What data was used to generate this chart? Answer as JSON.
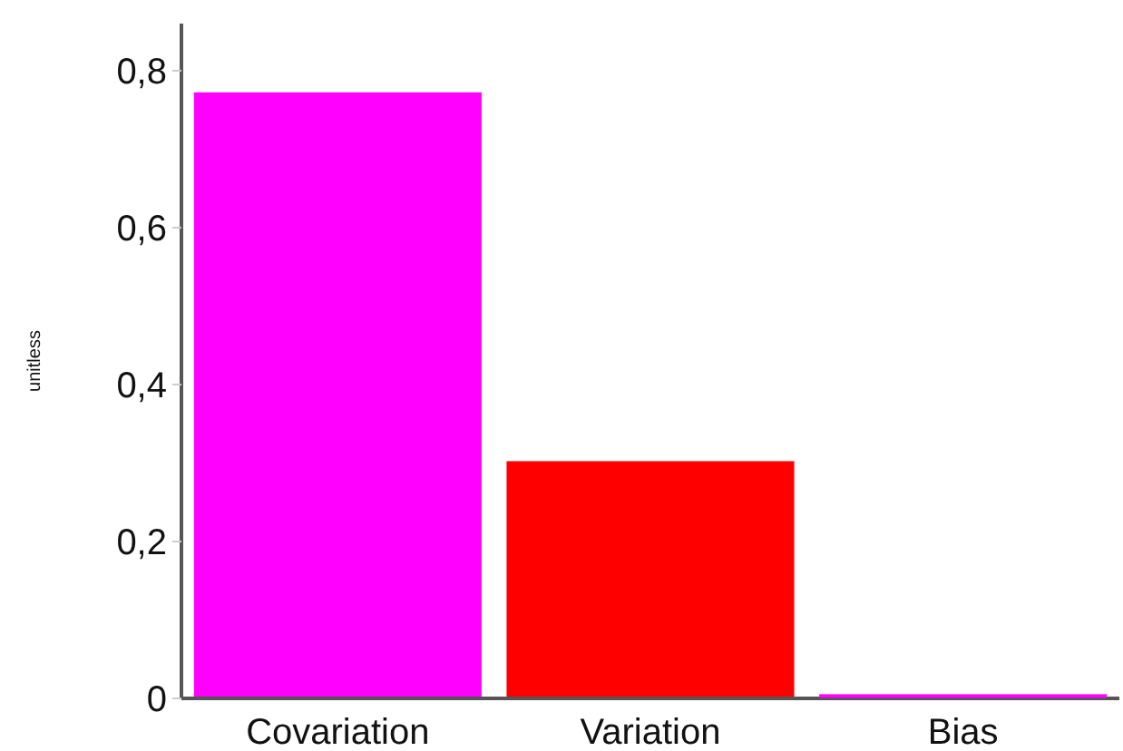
{
  "chart_data": {
    "type": "bar",
    "ylabel": "unitless",
    "categories": [
      "Covariation",
      "Variation",
      "Bias"
    ],
    "values": [
      0.77,
      0.3,
      0.003
    ],
    "colors": [
      "#ff00ff",
      "#ff0000",
      "#ff00ff"
    ],
    "ylim": [
      0,
      0.86
    ],
    "yticks": [
      {
        "value": 0,
        "label": "0"
      },
      {
        "value": 0.2,
        "label": "0,2"
      },
      {
        "value": 0.4,
        "label": "0,4"
      },
      {
        "value": 0.6,
        "label": "0,6"
      },
      {
        "value": 0.8,
        "label": "0,8"
      }
    ],
    "grid": false
  }
}
